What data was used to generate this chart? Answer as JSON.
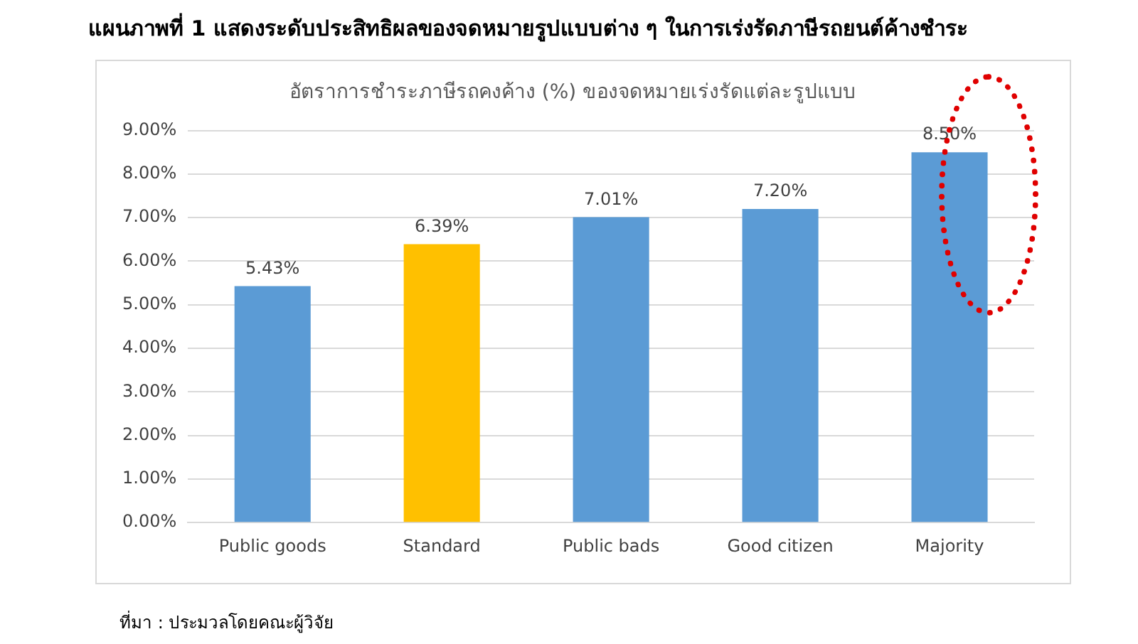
{
  "chart_data": {
    "type": "bar",
    "title": "แผนภาพที่ 1 แสดงระดับประสิทธิผลของจดหมายรูปแบบต่าง ๆ ในการเร่งรัดภาษีรถยนต์ค้างชำระ",
    "subtitle": "อัตราการชำระภาษีรถคงค้าง (%) ของจดหมายเร่งรัดแต่ละรูปแบบ",
    "categories": [
      "Public goods",
      "Standard",
      "Public bads",
      "Good citizen",
      "Majority"
    ],
    "values": [
      5.43,
      6.39,
      7.01,
      7.2,
      8.5
    ],
    "colors": [
      "#5b9bd5",
      "#ffc000",
      "#5b9bd5",
      "#5b9bd5",
      "#5b9bd5"
    ],
    "value_labels": [
      "5.43%",
      "6.39%",
      "7.01%",
      "7.20%",
      "8.50%"
    ],
    "ylim": [
      0,
      9
    ],
    "yticks": [
      {
        "value": 0,
        "label": "0.00%"
      },
      {
        "value": 1,
        "label": "1.00%"
      },
      {
        "value": 2,
        "label": "2.00%"
      },
      {
        "value": 3,
        "label": "3.00%"
      },
      {
        "value": 4,
        "label": "4.00%"
      },
      {
        "value": 5,
        "label": "5.00%"
      },
      {
        "value": 6,
        "label": "6.00%"
      },
      {
        "value": 7,
        "label": "7.00%"
      },
      {
        "value": 8,
        "label": "8.00%"
      },
      {
        "value": 9,
        "label": "9.00%"
      }
    ],
    "grid": "y",
    "legend": false,
    "annotations": [
      "ที่มา : ประมวลโดยคณะผู้วิจัย"
    ]
  }
}
